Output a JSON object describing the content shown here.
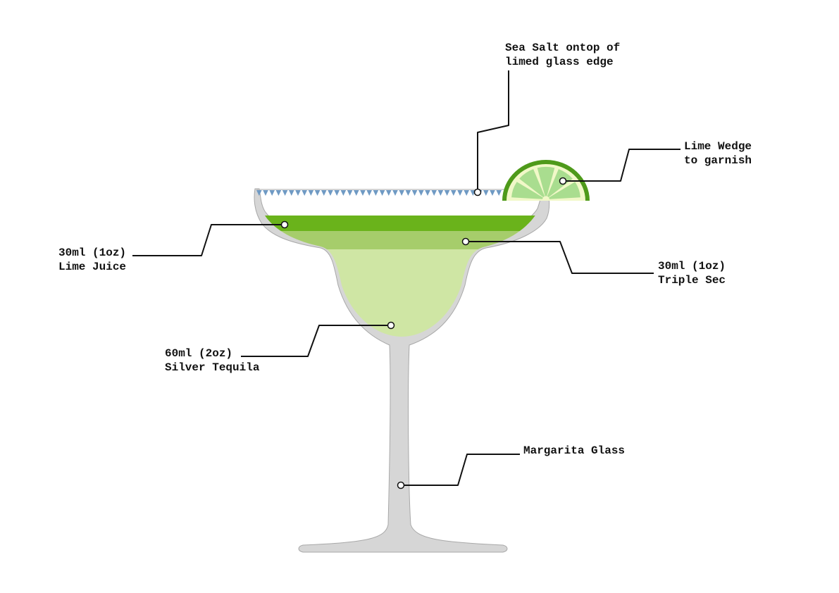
{
  "labels": {
    "sea_salt": {
      "line1": "Sea Salt ontop of",
      "line2": "limed glass edge"
    },
    "lime_wedge": {
      "line1": "Lime Wedge",
      "line2": "to garnish"
    },
    "lime_juice": {
      "line1": "30ml (1oz)",
      "line2": "Lime Juice"
    },
    "triple_sec": {
      "line1": "30ml (1oz)",
      "line2": "Triple Sec"
    },
    "tequila": {
      "line1": "60ml (2oz)",
      "line2": "Silver Tequila"
    },
    "glass": {
      "line1": "Margarita Glass"
    }
  },
  "colors": {
    "glass": "#d6d6d6",
    "glass_stroke": "#a8a8a8",
    "salt": "#6f9ac4",
    "lime_juice": "#6ab31b",
    "triple_sec": "#a6cd6b",
    "tequila": "#cfe6a4",
    "lime_rind": "#4e9a1a",
    "lime_pith": "#f1f8c8",
    "lime_flesh": "#a9dd8f",
    "leader": "#111111"
  }
}
